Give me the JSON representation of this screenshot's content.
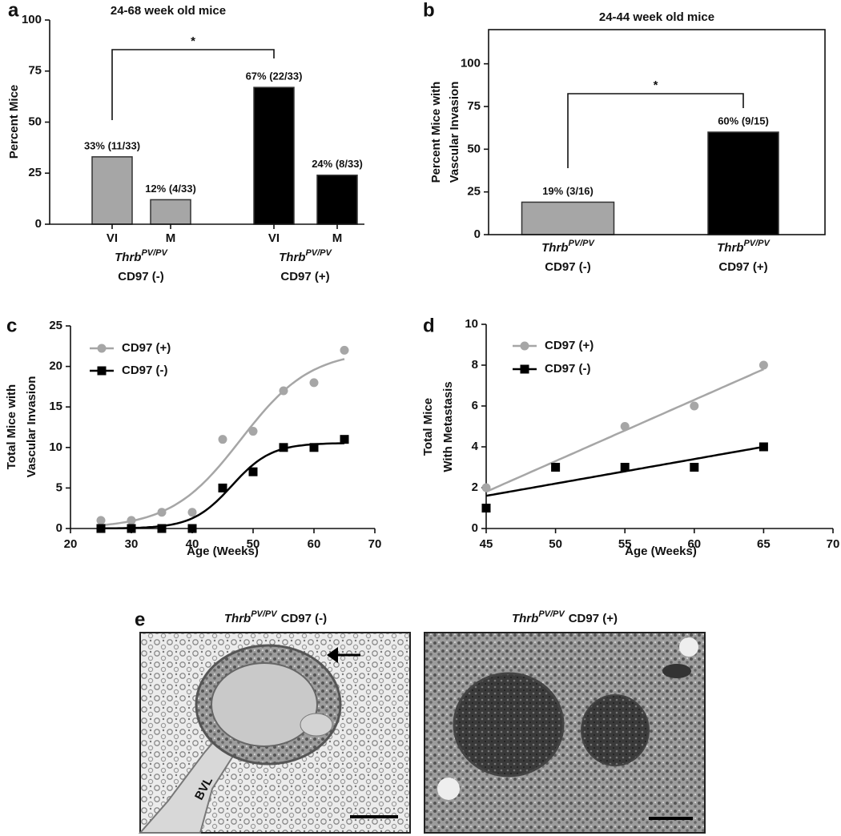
{
  "chart_data": [
    {
      "panel": "a",
      "type": "bar",
      "title": "24-68 week old mice",
      "ylabel": [
        "Percent Mice"
      ],
      "categories": [
        "VI",
        "M",
        "VI",
        "M"
      ],
      "values": [
        33,
        12,
        67,
        24
      ],
      "value_labels": [
        "33% (11/33)",
        "12% (4/33)",
        "67% (22/33)",
        "24% (8/33)"
      ],
      "colors": [
        "#a6a6a6",
        "#a6a6a6",
        "#000000",
        "#000000"
      ],
      "groups": [
        {
          "gene": "Thrb",
          "genotype": "PV/PV",
          "line": "CD97 (-)"
        },
        {
          "gene": "Thrb",
          "genotype": "PV/PV",
          "line": "CD97 (+)"
        }
      ],
      "ylim": [
        0,
        100
      ],
      "yticks": [
        0,
        25,
        50,
        75,
        100
      ],
      "annotation": "*"
    },
    {
      "panel": "b",
      "type": "bar",
      "title": "24-44 week old mice",
      "ylabel": [
        "Percent Mice with",
        "Vascular Invasion"
      ],
      "categories": [
        {
          "gene": "Thrb",
          "genotype": "PV/PV",
          "line": "CD97 (-)"
        },
        {
          "gene": "Thrb",
          "genotype": "PV/PV",
          "line": "CD97 (+)"
        }
      ],
      "values": [
        19,
        60
      ],
      "value_labels": [
        "19% (3/16)",
        "60% (9/15)"
      ],
      "colors": [
        "#a6a6a6",
        "#000000"
      ],
      "ylim": [
        0,
        120
      ],
      "yticks": [
        0,
        25,
        50,
        75,
        100
      ],
      "annotation": "*"
    },
    {
      "panel": "c",
      "type": "scatter",
      "fit": "logistic",
      "ylabel": [
        "Total Mice with",
        "Vascular Invasion"
      ],
      "xlabel": "Age (Weeks)",
      "x": [
        25,
        30,
        35,
        40,
        45,
        50,
        55,
        60,
        65
      ],
      "series": [
        {
          "name": "CD97 (+)",
          "color": "#a6a6a6",
          "marker": "circle",
          "values": [
            1,
            1,
            2,
            2,
            11,
            12,
            17,
            18,
            22
          ]
        },
        {
          "name": "CD97 (-)",
          "color": "#000000",
          "marker": "square",
          "values": [
            0,
            0,
            0,
            0,
            5,
            7,
            10,
            10,
            11
          ]
        }
      ],
      "xlim": [
        20,
        70
      ],
      "xticks": [
        20,
        30,
        40,
        50,
        60,
        70
      ],
      "ylim": [
        0,
        25
      ],
      "yticks": [
        0,
        5,
        10,
        15,
        20,
        25
      ],
      "legend": "upper left"
    },
    {
      "panel": "d",
      "type": "scatter",
      "fit": "linear",
      "ylabel": [
        "Total Mice",
        "With Metastasis"
      ],
      "xlabel": "Age (Weeks)",
      "x": [
        45,
        50,
        55,
        60,
        65
      ],
      "series": [
        {
          "name": "CD97 (+)",
          "color": "#a6a6a6",
          "marker": "circle",
          "values": [
            2,
            3,
            5,
            6,
            8
          ]
        },
        {
          "name": "CD97 (-)",
          "color": "#000000",
          "marker": "square",
          "values": [
            1,
            3,
            3,
            3,
            4
          ]
        }
      ],
      "xlim": [
        45,
        70
      ],
      "xticks": [
        45,
        50,
        55,
        60,
        65,
        70
      ],
      "ylim": [
        0,
        10
      ],
      "yticks": [
        0,
        2,
        4,
        6,
        8,
        10
      ],
      "legend": "upper left"
    }
  ],
  "figure_e": {
    "panel": "e",
    "images": [
      {
        "gene": "Thrb",
        "genotype": "PV/PV",
        "line": "CD97 (-)",
        "label": "BVL"
      },
      {
        "gene": "Thrb",
        "genotype": "PV/PV",
        "line": "CD97 (+)"
      }
    ]
  }
}
